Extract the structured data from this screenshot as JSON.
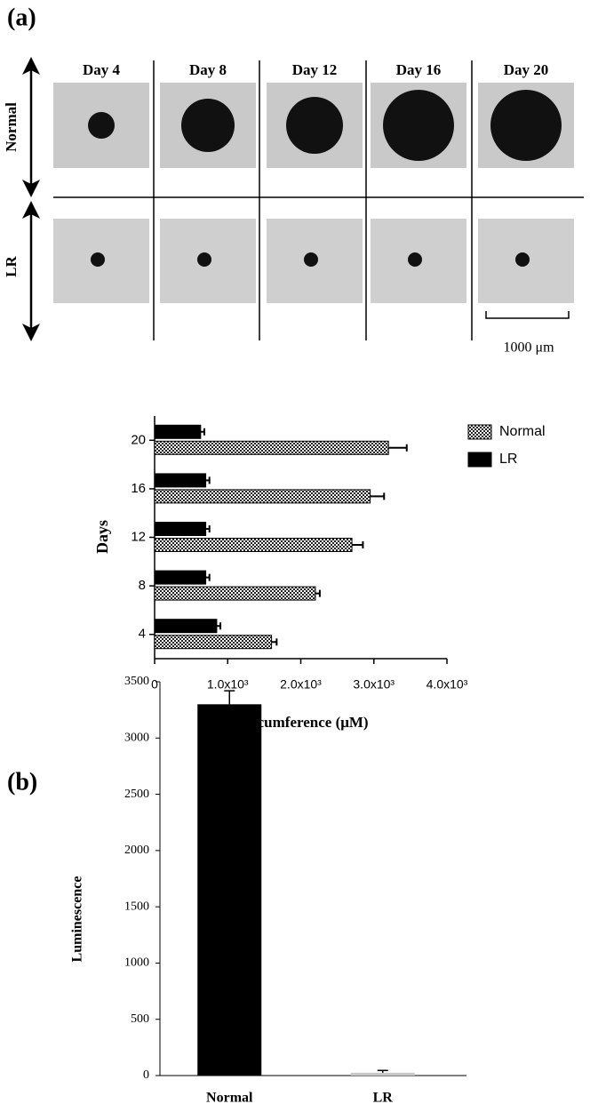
{
  "panels": [
    "(a)",
    "(b)"
  ],
  "image_grid": {
    "columns": [
      "Day 4",
      "Day 8",
      "Day 12",
      "Day 16",
      "Day 20"
    ],
    "rows": [
      "Normal",
      "LR"
    ],
    "scale_bar": "1000 μm"
  },
  "chart_data": [
    {
      "type": "barh",
      "ylabel": "Days",
      "xlabel": "Circumference (μM)",
      "categories": [
        "4",
        "8",
        "12",
        "16",
        "20"
      ],
      "series": [
        {
          "name": "Normal",
          "color": "#000000",
          "pattern": "checker",
          "values": [
            1600,
            2200,
            2700,
            2950,
            3200
          ],
          "errors": [
            70,
            60,
            150,
            190,
            250
          ]
        },
        {
          "name": "LR",
          "color": "#000000",
          "values": [
            850,
            700,
            700,
            700,
            630
          ],
          "errors": [
            50,
            50,
            50,
            50,
            50
          ]
        }
      ],
      "xlim": [
        0,
        4000
      ],
      "xticks": [
        0,
        {
          "value": 1000,
          "label": "1.0x10³"
        },
        {
          "value": 2000,
          "label": "2.0x10³"
        },
        {
          "value": 3000,
          "label": "3.0x10³"
        },
        {
          "value": 4000,
          "label": "4.0x10³"
        }
      ],
      "legend": "upper right"
    },
    {
      "type": "bar",
      "ylabel": "Luminescence",
      "categories": [
        "Normal",
        "LR"
      ],
      "values": [
        3300,
        25
      ],
      "errors": [
        120,
        20
      ],
      "colors": [
        "#000000",
        "#c8c8c8"
      ],
      "ylim": [
        0,
        3500
      ],
      "yticks": [
        0,
        500,
        1000,
        1500,
        2000,
        2500,
        3000,
        3500
      ]
    }
  ]
}
